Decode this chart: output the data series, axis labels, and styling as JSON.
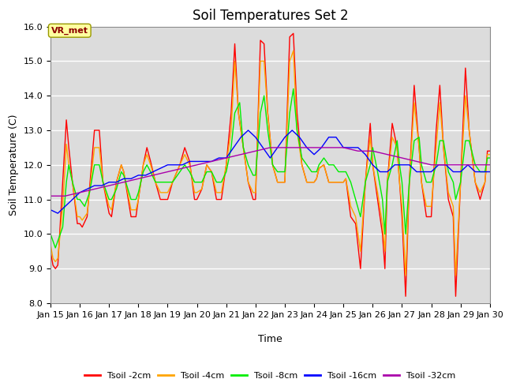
{
  "title": "Soil Temperatures Set 2",
  "xlabel": "Time",
  "ylabel": "Soil Temperature (C)",
  "ylim": [
    8.0,
    16.0
  ],
  "yticks": [
    8.0,
    9.0,
    10.0,
    11.0,
    12.0,
    13.0,
    14.0,
    15.0,
    16.0
  ],
  "xlim_start": 0,
  "xlim_end": 360,
  "xtick_labels": [
    "Jan 15",
    "Jan 16",
    "Jan 17",
    "Jan 18",
    "Jan 19",
    "Jan 20",
    "Jan 21",
    "Jan 22",
    "Jan 23",
    "Jan 24",
    "Jan 25",
    "Jan 26",
    "Jan 27",
    "Jan 28",
    "Jan 29",
    "Jan 30"
  ],
  "xtick_positions": [
    0,
    24,
    48,
    72,
    96,
    120,
    144,
    168,
    192,
    216,
    240,
    264,
    288,
    312,
    336,
    360
  ],
  "colors": {
    "Tsoil_2cm": "#FF0000",
    "Tsoil_4cm": "#FFA500",
    "Tsoil_8cm": "#00EE00",
    "Tsoil_16cm": "#0000FF",
    "Tsoil_32cm": "#AA00AA"
  },
  "legend_labels": [
    "Tsoil -2cm",
    "Tsoil -4cm",
    "Tsoil -8cm",
    "Tsoil -16cm",
    "Tsoil -32cm"
  ],
  "annotation_text": "VR_met",
  "background_color": "#DCDCDC",
  "title_fontsize": 12,
  "axis_fontsize": 9,
  "tick_fontsize": 8
}
